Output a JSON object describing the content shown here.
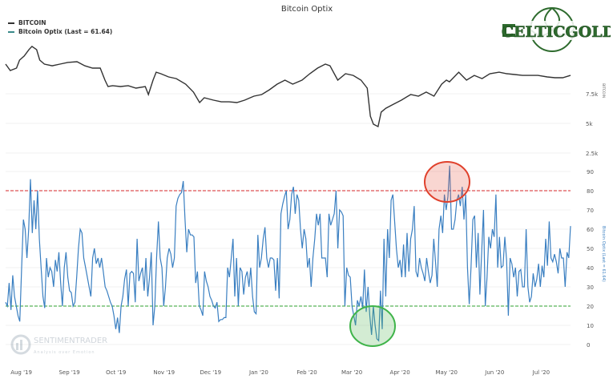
{
  "chart_data": [
    {
      "type": "line",
      "title": "Bitcoin Optix",
      "series_name": "BITCOIN",
      "ylabel": "BITCOIN",
      "unit": "k USD",
      "color": "#333333",
      "ticks": [
        {
          "value": 7.5,
          "label": "7.5k"
        },
        {
          "value": 5,
          "label": "5k"
        },
        {
          "value": 2.5,
          "label": "2.5k"
        }
      ],
      "x_day_offset_from": "2019-07-25",
      "points": [
        [
          0,
          10.0
        ],
        [
          3,
          9.46
        ],
        [
          7,
          9.66
        ],
        [
          9,
          10.34
        ],
        [
          12,
          10.68
        ],
        [
          15,
          11.22
        ],
        [
          17,
          11.49
        ],
        [
          20,
          11.22
        ],
        [
          22,
          10.34
        ],
        [
          25,
          10.0
        ],
        [
          30,
          9.86
        ],
        [
          35,
          10.0
        ],
        [
          40,
          10.14
        ],
        [
          46,
          10.2
        ],
        [
          51,
          9.86
        ],
        [
          56,
          9.66
        ],
        [
          61,
          9.66
        ],
        [
          64,
          8.65
        ],
        [
          66,
          8.11
        ],
        [
          69,
          8.18
        ],
        [
          74,
          8.11
        ],
        [
          79,
          8.18
        ],
        [
          84,
          7.97
        ],
        [
          90,
          8.11
        ],
        [
          92,
          7.43
        ],
        [
          95,
          8.65
        ],
        [
          97,
          9.32
        ],
        [
          100,
          9.19
        ],
        [
          105,
          8.92
        ],
        [
          110,
          8.78
        ],
        [
          116,
          8.31
        ],
        [
          121,
          7.64
        ],
        [
          125,
          6.76
        ],
        [
          128,
          7.16
        ],
        [
          134,
          6.96
        ],
        [
          139,
          6.82
        ],
        [
          144,
          6.82
        ],
        [
          149,
          6.76
        ],
        [
          154,
          6.96
        ],
        [
          160,
          7.3
        ],
        [
          165,
          7.43
        ],
        [
          170,
          7.84
        ],
        [
          175,
          8.31
        ],
        [
          180,
          8.65
        ],
        [
          185,
          8.31
        ],
        [
          191,
          8.65
        ],
        [
          196,
          9.19
        ],
        [
          201,
          9.66
        ],
        [
          206,
          10.0
        ],
        [
          209,
          9.86
        ],
        [
          214,
          8.65
        ],
        [
          219,
          9.19
        ],
        [
          224,
          9.05
        ],
        [
          229,
          8.65
        ],
        [
          233,
          7.97
        ],
        [
          235,
          5.61
        ],
        [
          237,
          4.93
        ],
        [
          240,
          4.73
        ],
        [
          242,
          5.95
        ],
        [
          245,
          6.28
        ],
        [
          250,
          6.62
        ],
        [
          255,
          6.96
        ],
        [
          261,
          7.43
        ],
        [
          266,
          7.3
        ],
        [
          271,
          7.64
        ],
        [
          276,
          7.3
        ],
        [
          281,
          8.31
        ],
        [
          284,
          8.65
        ],
        [
          286,
          8.51
        ],
        [
          292,
          9.32
        ],
        [
          294,
          9.05
        ],
        [
          297,
          8.65
        ],
        [
          302,
          9.05
        ],
        [
          307,
          8.78
        ],
        [
          312,
          9.19
        ],
        [
          318,
          9.32
        ],
        [
          323,
          9.19
        ],
        [
          328,
          9.12
        ],
        [
          333,
          9.05
        ],
        [
          338,
          9.05
        ],
        [
          343,
          9.05
        ],
        [
          349,
          8.92
        ],
        [
          354,
          8.85
        ],
        [
          359,
          8.85
        ],
        [
          364,
          9.05
        ]
      ]
    },
    {
      "type": "line",
      "series_name": "Bitcoin Optix (Last = 61.64)",
      "ylabel": "Bitcoin Optix (Last = 61.64)",
      "color": "#3a7fc1",
      "ylim": [
        0,
        90
      ],
      "yticks": [
        0,
        10,
        20,
        30,
        40,
        50,
        60,
        70,
        80,
        90
      ],
      "thresholds": [
        {
          "value": 80,
          "color": "#d62728"
        },
        {
          "value": 20,
          "color": "#2ca02c"
        }
      ],
      "annotations": [
        {
          "type": "circle",
          "color": "#e0412c",
          "near_value": 85,
          "near": "May '20"
        },
        {
          "type": "circle",
          "color": "#3fb44a",
          "near_value": 8,
          "near": "Mar '20"
        }
      ],
      "x_range_days": [
        0,
        364
      ],
      "values": [
        22,
        20,
        32,
        18,
        36,
        25,
        20,
        15,
        12,
        40,
        65,
        60,
        45,
        60,
        86,
        58,
        75,
        60,
        80,
        55,
        40,
        25,
        19,
        45,
        35,
        40,
        38,
        30,
        44,
        38,
        48,
        32,
        20,
        40,
        48,
        35,
        28,
        27,
        20,
        22,
        35,
        50,
        60,
        58,
        45,
        40,
        35,
        30,
        25,
        45,
        50,
        42,
        45,
        40,
        45,
        38,
        30,
        28,
        25,
        22,
        20,
        15,
        8,
        14,
        6,
        20,
        25,
        34,
        39,
        20,
        37,
        38,
        37,
        22,
        55,
        33,
        37,
        40,
        28,
        45,
        25,
        35,
        48,
        10,
        20,
        45,
        64,
        45,
        40,
        20,
        30,
        45,
        50,
        47,
        40,
        45,
        72,
        76,
        78,
        79,
        85,
        65,
        48,
        60,
        57,
        57,
        56,
        32,
        38,
        20,
        18,
        15,
        38,
        33,
        30,
        25,
        23,
        20,
        19,
        22,
        12,
        13,
        13,
        14,
        14,
        40,
        35,
        45,
        55,
        25,
        45,
        20,
        40,
        38,
        26,
        35,
        38,
        30,
        40,
        25,
        17,
        16,
        57,
        40,
        45,
        55,
        61,
        45,
        40,
        45,
        45,
        44,
        28,
        45,
        24,
        68,
        73,
        77,
        80,
        60,
        65,
        78,
        82,
        68,
        78,
        75,
        60,
        50,
        60,
        55,
        40,
        45,
        30,
        45,
        55,
        68,
        62,
        68,
        45,
        45,
        45,
        35,
        68,
        62,
        65,
        68,
        80,
        50,
        70,
        69,
        67,
        20,
        40,
        36,
        35,
        20,
        15,
        10,
        23,
        20,
        25,
        19,
        39,
        17,
        30,
        15,
        5,
        20,
        10,
        3,
        2,
        28,
        8,
        55,
        25,
        60,
        45,
        75,
        78,
        64,
        50,
        40,
        44,
        35,
        52,
        35,
        58,
        38,
        55,
        60,
        72,
        38,
        35,
        45,
        40,
        37,
        33,
        45,
        38,
        32,
        36,
        55,
        43,
        30,
        60,
        67,
        58,
        78,
        70,
        77,
        93,
        60,
        60,
        65,
        75,
        78,
        72,
        82,
        65,
        78,
        40,
        21,
        40,
        65,
        67,
        40,
        58,
        26,
        49,
        70,
        20,
        35,
        56,
        50,
        60,
        56,
        78,
        40,
        56,
        40,
        41,
        56,
        44,
        15,
        45,
        42,
        35,
        40,
        25,
        38,
        39,
        30,
        30,
        60,
        30,
        22,
        25,
        37,
        30,
        34,
        42,
        30,
        41,
        35,
        55,
        41,
        64,
        45,
        43,
        47,
        43,
        37,
        50,
        45,
        45,
        30,
        48,
        45,
        61.64
      ]
    }
  ],
  "x_axis": {
    "ticks": [
      {
        "label": "Aug '19",
        "day": 7
      },
      {
        "label": "Sep '19",
        "day": 38
      },
      {
        "label": "Oct '19",
        "day": 68
      },
      {
        "label": "Nov '19",
        "day": 99
      },
      {
        "label": "Dec '19",
        "day": 129
      },
      {
        "label": "Jan '20",
        "day": 160
      },
      {
        "label": "Feb '20",
        "day": 191
      },
      {
        "label": "Mar '20",
        "day": 220
      },
      {
        "label": "Apr '20",
        "day": 251
      },
      {
        "label": "May '20",
        "day": 281
      },
      {
        "label": "Jun '20",
        "day": 312
      },
      {
        "label": "Jul '20",
        "day": 342
      }
    ]
  },
  "legend": {
    "items": [
      {
        "label": "BITCOIN",
        "color": "#333333"
      },
      {
        "label": "Bitcoin Optix (Last = 61.64)",
        "color": "#3a8a8a"
      }
    ]
  },
  "watermark": {
    "name": "SENTIMENTRADER",
    "tagline": "Analysis over Emotion"
  },
  "logo": {
    "text": "CELTICGOLD",
    "color": "#2e6b2e"
  }
}
